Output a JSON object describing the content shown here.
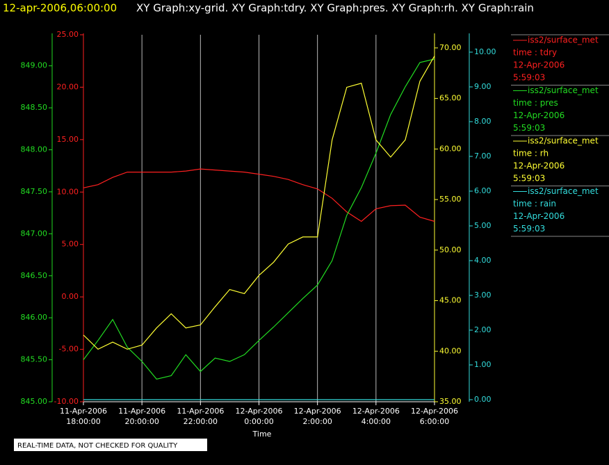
{
  "chart_data": {
    "type": "line",
    "timestamp": "12-apr-2006,06:00:00",
    "title": "XY Graph:xy-grid.  XY Graph:tdry.  XY Graph:pres.  XY Graph:rh.  XY Graph:rain",
    "x_label": "Time",
    "note": "REAL-TIME DATA, NOT CHECKED FOR QUALITY",
    "grid": true,
    "x": [
      0,
      0.5,
      1,
      1.5,
      2,
      2.5,
      3,
      3.5,
      4,
      4.5,
      5,
      5.5,
      6,
      6.5,
      7,
      7.5,
      8,
      8.5,
      9,
      9.5,
      10,
      10.5,
      11,
      11.5,
      12
    ],
    "xlim": [
      0,
      12
    ],
    "xticks": [
      {
        "value": 0,
        "label": [
          "11-Apr-2006",
          "18:00:00"
        ]
      },
      {
        "value": 2,
        "label": [
          "11-Apr-2006",
          "20:00:00"
        ]
      },
      {
        "value": 4,
        "label": [
          "11-Apr-2006",
          "22:00:00"
        ]
      },
      {
        "value": 6,
        "label": [
          "12-Apr-2006",
          "0:00:00"
        ]
      },
      {
        "value": 8,
        "label": [
          "12-Apr-2006",
          "2:00:00"
        ]
      },
      {
        "value": 10,
        "label": [
          "12-Apr-2006",
          "4:00:00"
        ]
      },
      {
        "value": 12,
        "label": [
          "12-Apr-2006",
          "6:00:00"
        ]
      }
    ],
    "ylim": [
      -10,
      25
    ],
    "yticks": [
      {
        "value": -10,
        "label": "-10.00"
      },
      {
        "value": -5,
        "label": "-5.00"
      },
      {
        "value": 0,
        "label": "0.00"
      },
      {
        "value": 5,
        "label": "5.00"
      },
      {
        "value": 10,
        "label": "10.00"
      },
      {
        "value": 15,
        "label": "15.00"
      },
      {
        "value": 20,
        "label": "20.00"
      },
      {
        "value": 25,
        "label": "25.00"
      }
    ],
    "y2lim": [
      845,
      849.37
    ],
    "y2ticks": [
      {
        "value": 845,
        "label": "845.00"
      },
      {
        "value": 845.5,
        "label": "845.50"
      },
      {
        "value": 846,
        "label": "846.00"
      },
      {
        "value": 846.5,
        "label": "846.50"
      },
      {
        "value": 847,
        "label": "847.00"
      },
      {
        "value": 847.5,
        "label": "847.50"
      },
      {
        "value": 848,
        "label": "848.00"
      },
      {
        "value": 848.5,
        "label": "848.50"
      },
      {
        "value": 849,
        "label": "849.00"
      }
    ],
    "y3lim": [
      35,
      71.3
    ],
    "y3ticks": [
      {
        "value": 35,
        "label": "35.00"
      },
      {
        "value": 40,
        "label": "40.00"
      },
      {
        "value": 45,
        "label": "45.00"
      },
      {
        "value": 50,
        "label": "50.00"
      },
      {
        "value": 55,
        "label": "55.00"
      },
      {
        "value": 60,
        "label": "60.00"
      },
      {
        "value": 65,
        "label": "65.00"
      },
      {
        "value": 70,
        "label": "70.00"
      }
    ],
    "y4lim": [
      -0.06,
      10.5
    ],
    "y4ticks": [
      {
        "value": 0,
        "label": "0.00"
      },
      {
        "value": 1,
        "label": "1.00"
      },
      {
        "value": 2,
        "label": "2.00"
      },
      {
        "value": 3,
        "label": "3.00"
      },
      {
        "value": 4,
        "label": "4.00"
      },
      {
        "value": 5,
        "label": "5.00"
      },
      {
        "value": 6,
        "label": "6.00"
      },
      {
        "value": 7,
        "label": "7.00"
      },
      {
        "value": 8,
        "label": "8.00"
      },
      {
        "value": 9,
        "label": "9.00"
      },
      {
        "value": 10,
        "label": "10.00"
      }
    ],
    "series": [
      {
        "name": "iss2/surface_met",
        "variable": "time : tdry",
        "date": "12-Apr-2006",
        "time": "5:59:03",
        "color": "#ff2020",
        "axis": "y",
        "values": [
          10.4,
          10.7,
          11.4,
          11.9,
          11.9,
          11.9,
          11.9,
          12.0,
          12.2,
          12.1,
          12.0,
          11.9,
          11.7,
          11.5,
          11.2,
          10.7,
          10.3,
          9.4,
          8.1,
          7.2,
          8.4,
          8.7,
          8.75,
          7.6,
          7.2
        ]
      },
      {
        "name": "iss2/surface_met",
        "variable": "time : pres",
        "date": "12-Apr-2006",
        "time": "5:59:03",
        "color": "#22dd22",
        "axis": "y2",
        "values": [
          845.5,
          845.73,
          845.98,
          845.65,
          845.48,
          845.27,
          845.31,
          845.56,
          845.36,
          845.52,
          845.48,
          845.56,
          845.73,
          845.89,
          846.06,
          846.23,
          846.39,
          846.68,
          847.22,
          847.55,
          847.96,
          848.42,
          848.75,
          849.04,
          849.08
        ]
      },
      {
        "name": "iss2/surface_met",
        "variable": "time : rh",
        "date": "12-Apr-2006",
        "time": "5:59:03",
        "color": "#ffff33",
        "axis": "y3",
        "values": [
          41.6,
          40.2,
          40.9,
          40.2,
          40.6,
          42.3,
          43.7,
          42.3,
          42.6,
          44.4,
          46.1,
          45.7,
          47.5,
          48.8,
          50.6,
          51.3,
          51.3,
          60.9,
          66.1,
          66.5,
          60.9,
          59.2,
          60.9,
          66.7,
          69.2
        ]
      },
      {
        "name": "iss2/surface_met",
        "variable": "time : rain",
        "date": "12-Apr-2006",
        "time": "5:59:03",
        "color": "#33dddd",
        "axis": "y4",
        "values": [
          0,
          0,
          0,
          0,
          0,
          0,
          0,
          0,
          0,
          0,
          0,
          0,
          0,
          0,
          0,
          0,
          0,
          0,
          0,
          0,
          0,
          0,
          0,
          0,
          0
        ]
      }
    ]
  }
}
